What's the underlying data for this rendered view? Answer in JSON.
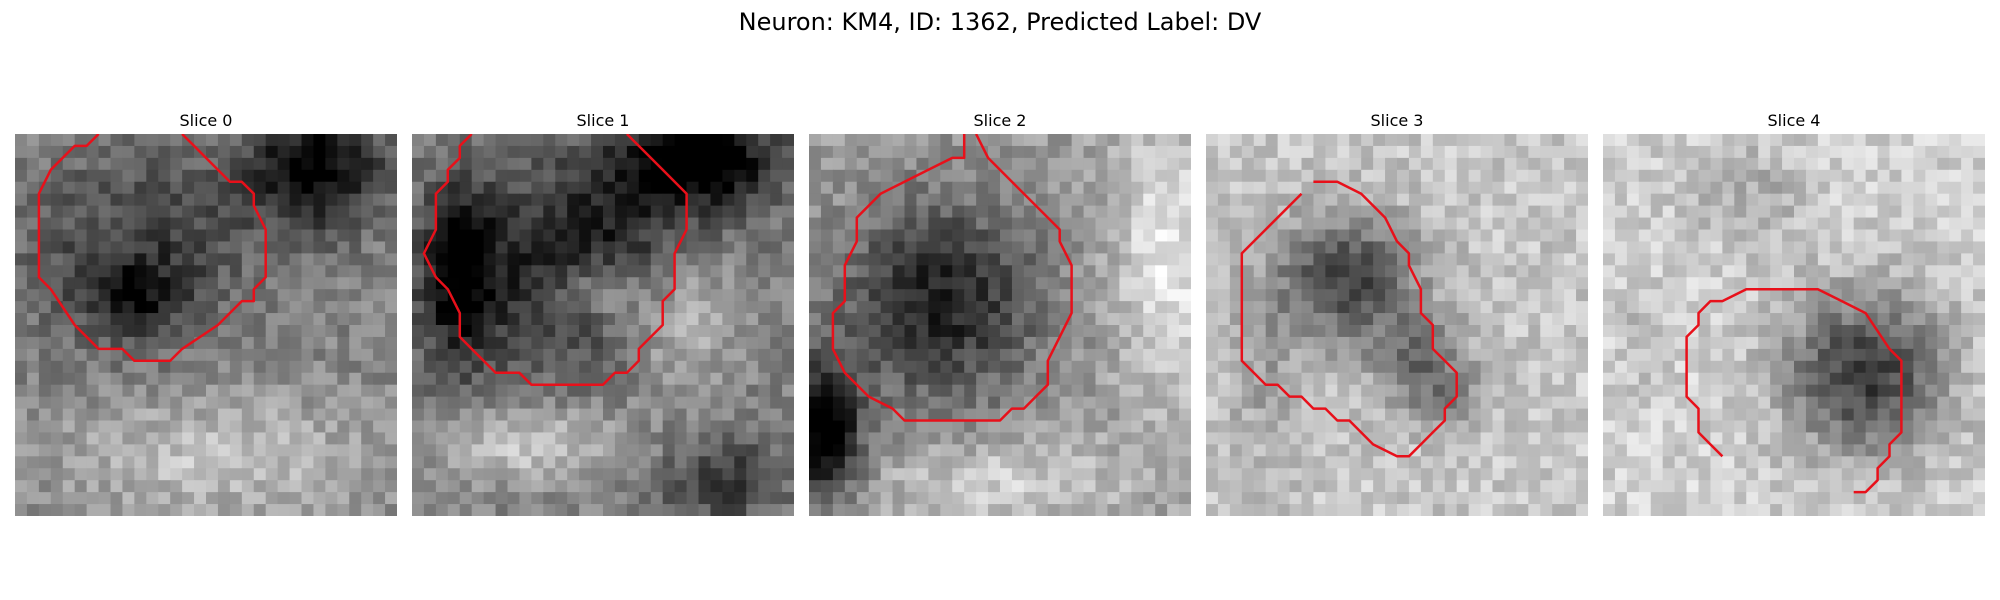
{
  "figure": {
    "title": "Neuron: KM4, ID: 1362, Predicted Label: DV"
  },
  "colors": {
    "contour": "#e8101a",
    "background": "#ffffff"
  },
  "panels": [
    {
      "title": "Slice 0"
    },
    {
      "title": "Slice 1"
    },
    {
      "title": "Slice 2"
    },
    {
      "title": "Slice 3"
    },
    {
      "title": "Slice 4"
    }
  ]
}
